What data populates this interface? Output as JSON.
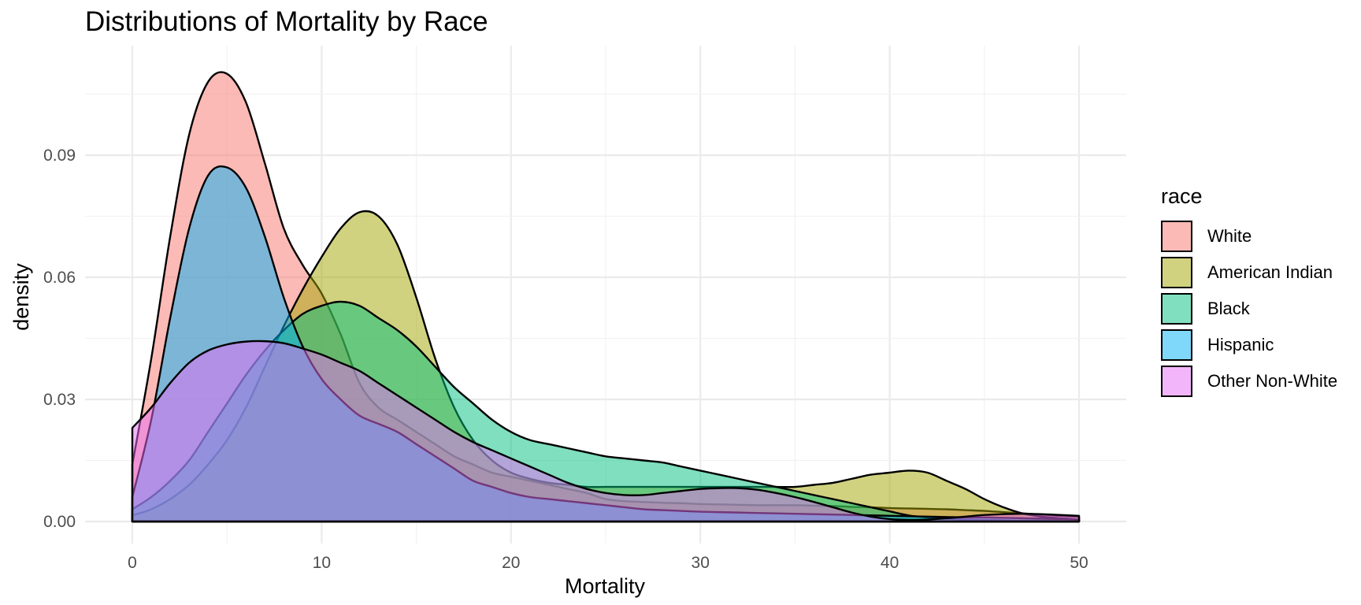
{
  "chart_data": {
    "type": "area",
    "title": "Distributions of Mortality by Race",
    "xlabel": "Mortality",
    "ylabel": "density",
    "xlim": [
      0,
      50
    ],
    "ylim": [
      0,
      0.11
    ],
    "x_ticks": [
      0,
      10,
      20,
      30,
      40,
      50
    ],
    "y_ticks": [
      "0.00",
      "0.03",
      "0.06",
      "0.09"
    ],
    "grid": true,
    "legend_title": "race",
    "legend_position": "right",
    "x": [
      0,
      1,
      2,
      3,
      4,
      5,
      6,
      7,
      8,
      9,
      10,
      11,
      12,
      13,
      14,
      15,
      16,
      17,
      18,
      19,
      20,
      21,
      22,
      23,
      24,
      25,
      26,
      27,
      28,
      29,
      30,
      31,
      32,
      33,
      34,
      35,
      36,
      37,
      38,
      39,
      40,
      41,
      42,
      43,
      44,
      45,
      46,
      47,
      48,
      49,
      50
    ],
    "series": [
      {
        "name": "White",
        "color": "#F8766D",
        "values": [
          0.014,
          0.04,
          0.07,
          0.095,
          0.108,
          0.11,
          0.103,
          0.088,
          0.072,
          0.063,
          0.056,
          0.046,
          0.034,
          0.028,
          0.025,
          0.022,
          0.019,
          0.016,
          0.014,
          0.012,
          0.011,
          0.01,
          0.009,
          0.008,
          0.007,
          0.0055,
          0.005,
          0.0048,
          0.0046,
          0.0045,
          0.0043,
          0.0042,
          0.0041,
          0.004,
          0.004,
          0.004,
          0.0039,
          0.0038,
          0.0036,
          0.0035,
          0.0033,
          0.0032,
          0.0031,
          0.003,
          0.0028,
          0.0026,
          0.0023,
          0.002,
          0.0017,
          0.0014,
          0.0012
        ]
      },
      {
        "name": "American Indian",
        "color": "#A3A500",
        "values": [
          0.0015,
          0.003,
          0.0055,
          0.009,
          0.014,
          0.02,
          0.028,
          0.038,
          0.048,
          0.057,
          0.065,
          0.072,
          0.076,
          0.075,
          0.068,
          0.055,
          0.04,
          0.028,
          0.02,
          0.015,
          0.012,
          0.0105,
          0.0095,
          0.009,
          0.0085,
          0.0085,
          0.0085,
          0.0085,
          0.0085,
          0.0085,
          0.0085,
          0.0085,
          0.0085,
          0.0085,
          0.0085,
          0.0085,
          0.009,
          0.0095,
          0.0105,
          0.0115,
          0.012,
          0.0125,
          0.012,
          0.01,
          0.008,
          0.0055,
          0.0035,
          0.002,
          0.0012,
          0.0008,
          0.0005
        ]
      },
      {
        "name": "Black",
        "color": "#00BF7D",
        "values": [
          0.003,
          0.006,
          0.01,
          0.015,
          0.022,
          0.029,
          0.036,
          0.042,
          0.047,
          0.051,
          0.053,
          0.054,
          0.053,
          0.05,
          0.047,
          0.043,
          0.038,
          0.033,
          0.029,
          0.025,
          0.022,
          0.02,
          0.019,
          0.018,
          0.017,
          0.016,
          0.0155,
          0.015,
          0.0145,
          0.0135,
          0.0125,
          0.0115,
          0.0105,
          0.0095,
          0.0085,
          0.0075,
          0.0065,
          0.0055,
          0.0045,
          0.0035,
          0.0025,
          0.0015,
          0.001,
          0.0007,
          0.0005,
          0.0004,
          0.0003,
          0.0002,
          0.0002,
          0.0001,
          0.0001
        ]
      },
      {
        "name": "Hispanic",
        "color": "#00B0F6",
        "values": [
          0.006,
          0.025,
          0.05,
          0.072,
          0.085,
          0.087,
          0.082,
          0.07,
          0.055,
          0.043,
          0.035,
          0.03,
          0.026,
          0.024,
          0.022,
          0.019,
          0.016,
          0.013,
          0.01,
          0.0085,
          0.007,
          0.006,
          0.0055,
          0.005,
          0.0045,
          0.004,
          0.0035,
          0.003,
          0.0028,
          0.0026,
          0.0024,
          0.0023,
          0.0022,
          0.0021,
          0.002,
          0.0019,
          0.0018,
          0.0017,
          0.0016,
          0.0015,
          0.0014,
          0.0013,
          0.0012,
          0.0011,
          0.001,
          0.001,
          0.0009,
          0.0008,
          0.0007,
          0.0006,
          0.0005
        ]
      },
      {
        "name": "Other Non-White",
        "color": "#E76BF3",
        "values": [
          0.023,
          0.028,
          0.034,
          0.039,
          0.042,
          0.0435,
          0.0442,
          0.0443,
          0.0438,
          0.0425,
          0.041,
          0.039,
          0.037,
          0.034,
          0.031,
          0.028,
          0.025,
          0.022,
          0.0195,
          0.0175,
          0.0155,
          0.0135,
          0.0115,
          0.0095,
          0.008,
          0.007,
          0.0065,
          0.0065,
          0.007,
          0.0075,
          0.008,
          0.0082,
          0.0082,
          0.0078,
          0.007,
          0.006,
          0.0048,
          0.0035,
          0.0022,
          0.0012,
          0.0006,
          0.0004,
          0.0005,
          0.0008,
          0.0012,
          0.0016,
          0.0018,
          0.0019,
          0.0018,
          0.0016,
          0.0014
        ]
      }
    ]
  }
}
